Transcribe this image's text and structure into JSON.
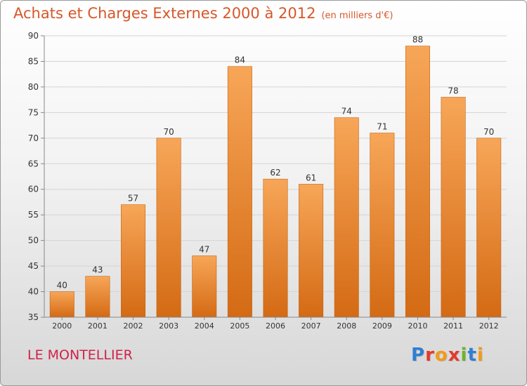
{
  "header": {
    "title": "Achats et Charges Externes 2000 à 2012",
    "unit": "(en milliers d'€)"
  },
  "footer": {
    "city": "LE MONTELLIER",
    "brand": "Proxiti",
    "brand_colors": [
      "#2f7fd2",
      "#e33a2c",
      "#f29a1a",
      "#e33a2c",
      "#6ab42d",
      "#2f7fd2",
      "#f29a1a"
    ]
  },
  "colors": {
    "title": "#d6572a",
    "city": "#d0214a",
    "bar_top": "#f7a658",
    "bar_bottom": "#d46a14"
  },
  "chart_data": {
    "type": "bar",
    "categories": [
      "2000",
      "2001",
      "2002",
      "2003",
      "2004",
      "2005",
      "2006",
      "2007",
      "2008",
      "2009",
      "2010",
      "2011",
      "2012"
    ],
    "values": [
      40,
      43,
      57,
      70,
      47,
      84,
      62,
      61,
      74,
      71,
      88,
      78,
      70
    ],
    "ylim": [
      35,
      90
    ],
    "yticks": [
      35,
      40,
      45,
      50,
      55,
      60,
      65,
      70,
      75,
      80,
      85,
      90
    ],
    "grid": true,
    "data_labels": true
  }
}
